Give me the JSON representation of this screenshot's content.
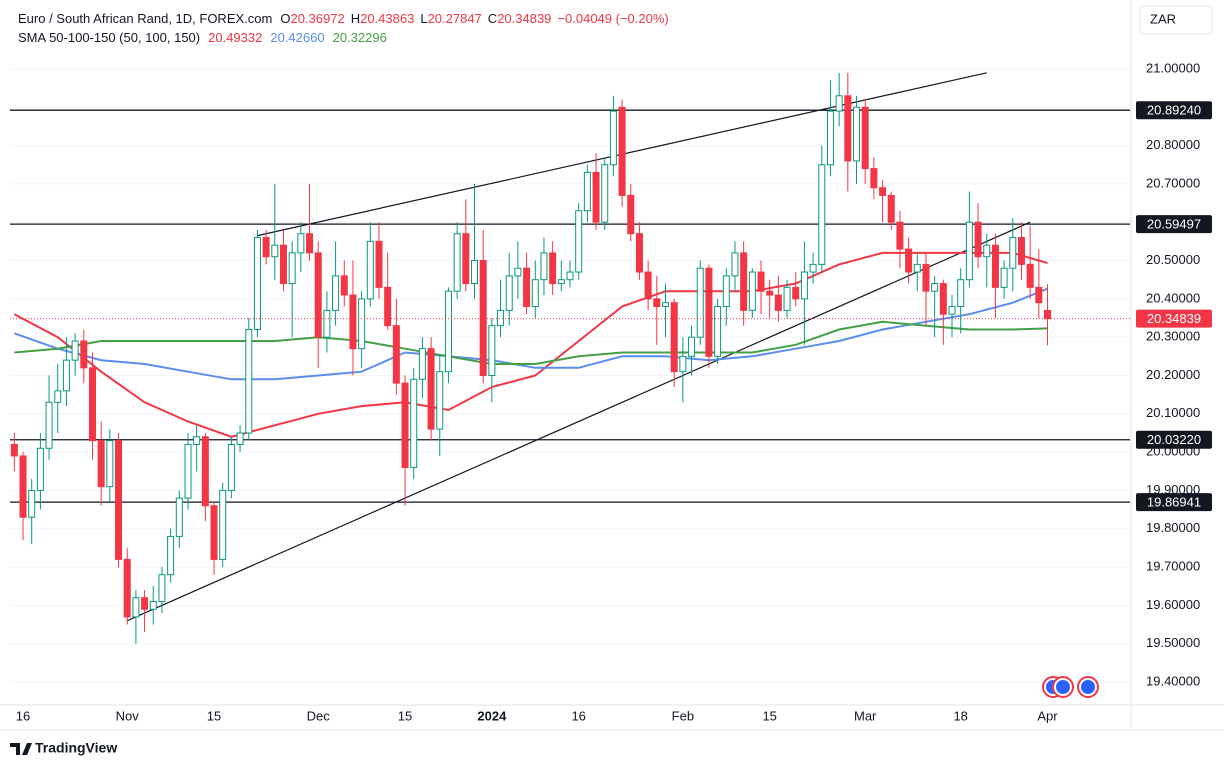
{
  "chart_data": {
    "type": "candlestick",
    "title": "Euro / South African Rand, 1D, FOREX.com",
    "ohlc_text": [
      {
        "key": "O",
        "value": "20.36972"
      },
      {
        "key": "H",
        "value": "20.43863"
      },
      {
        "key": "L",
        "value": "20.27847"
      },
      {
        "key": "C",
        "value": "20.34839"
      }
    ],
    "change_text": "−0.04049 (−0.20%)",
    "indicator": "SMA 50-100-150 (50, 100, 150)",
    "currency": "ZAR",
    "brand": "TradingView",
    "up_color": "#089981",
    "down_color": "#f23645",
    "categories": [
      null,
      "16",
      null,
      null,
      null,
      null,
      null,
      null,
      null,
      null,
      null,
      null,
      null,
      "Nov",
      null,
      null,
      null,
      null,
      null,
      null,
      null,
      null,
      null,
      "15",
      null,
      null,
      null,
      null,
      null,
      null,
      null,
      null,
      null,
      null,
      null,
      "Dec",
      null,
      null,
      null,
      null,
      null,
      null,
      null,
      null,
      null,
      "15",
      null,
      null,
      null,
      null,
      null,
      null,
      null,
      null,
      null,
      "2024",
      null,
      null,
      null,
      null,
      null,
      null,
      null,
      null,
      null,
      "16",
      null,
      null,
      null,
      null,
      null,
      null,
      null,
      null,
      null,
      null,
      null,
      "Feb",
      null,
      null,
      null,
      null,
      null,
      null,
      null,
      null,
      null,
      "15",
      null,
      null,
      null,
      null,
      null,
      null,
      null,
      null,
      null,
      null,
      "Mar",
      null,
      null,
      null,
      null,
      null,
      null,
      null,
      null,
      null,
      null,
      "18",
      null,
      null,
      null,
      null,
      null,
      null,
      null,
      null,
      null,
      "Apr"
    ],
    "open": [
      20.02,
      19.99,
      19.83,
      19.9,
      20.01,
      20.13,
      20.16,
      20.24,
      20.29,
      20.22,
      20.03,
      19.91,
      20.03,
      19.72,
      19.57,
      19.62,
      19.59,
      19.61,
      19.68,
      19.78,
      19.88,
      20.02,
      20.04,
      19.86,
      19.72,
      19.9,
      20.02,
      20.05,
      20.32,
      20.56,
      20.51,
      20.54,
      20.44,
      20.52,
      20.57,
      20.52,
      20.3,
      20.37,
      20.46,
      20.41,
      20.27,
      20.4,
      20.55,
      20.43,
      20.33,
      20.18,
      19.96,
      20.19,
      20.27,
      20.06,
      20.21,
      20.42,
      20.57,
      20.44,
      20.5,
      20.2,
      20.33,
      20.37,
      20.46,
      20.48,
      20.38,
      20.45,
      20.52,
      20.44,
      20.45,
      20.47,
      20.63,
      20.73,
      20.6,
      20.75,
      20.9,
      20.67,
      20.57,
      20.47,
      20.4,
      20.38,
      20.39,
      20.21,
      20.25,
      20.3,
      20.48,
      20.25,
      20.38,
      20.46,
      20.52,
      20.37,
      20.47,
      20.42,
      20.41,
      20.37,
      20.43,
      20.4,
      20.47,
      20.49,
      20.75,
      20.89,
      20.93,
      20.76,
      20.9,
      20.74,
      20.69,
      20.67,
      20.6,
      20.53,
      20.47,
      20.49,
      20.42,
      20.44,
      20.36,
      20.38,
      20.45,
      20.6,
      20.51,
      20.54,
      20.43,
      20.48,
      20.56,
      20.49,
      20.43,
      20.36972
    ],
    "high": [
      20.05,
      20.0,
      19.93,
      20.05,
      20.2,
      20.23,
      20.3,
      20.31,
      20.32,
      20.26,
      20.08,
      20.06,
      20.05,
      19.75,
      19.64,
      19.64,
      19.65,
      19.7,
      19.8,
      19.9,
      20.05,
      20.07,
      20.05,
      19.87,
      19.92,
      20.04,
      20.07,
      20.35,
      20.58,
      20.58,
      20.7,
      20.58,
      20.55,
      20.6,
      20.7,
      20.55,
      20.42,
      20.55,
      20.5,
      20.5,
      20.42,
      20.6,
      20.6,
      20.52,
      20.4,
      20.2,
      20.22,
      20.3,
      20.3,
      20.25,
      20.43,
      20.6,
      20.66,
      20.7,
      20.58,
      20.35,
      20.45,
      20.52,
      20.55,
      20.52,
      20.5,
      20.56,
      20.55,
      20.5,
      20.5,
      20.65,
      20.75,
      20.78,
      20.77,
      20.93,
      20.92,
      20.7,
      20.6,
      20.5,
      20.46,
      20.44,
      20.4,
      20.3,
      20.33,
      20.5,
      20.49,
      20.4,
      20.48,
      20.55,
      20.55,
      20.48,
      20.5,
      20.45,
      20.46,
      20.45,
      20.47,
      20.55,
      20.52,
      20.8,
      20.97,
      20.99,
      20.99,
      20.93,
      20.92,
      20.77,
      20.71,
      20.68,
      20.63,
      20.56,
      20.52,
      20.52,
      20.46,
      20.45,
      20.41,
      20.48,
      20.68,
      20.65,
      20.57,
      20.57,
      20.5,
      20.61,
      20.6,
      20.59,
      20.53,
      20.43863
    ],
    "low": [
      19.95,
      19.77,
      19.76,
      19.85,
      19.98,
      20.05,
      20.12,
      20.2,
      20.18,
      19.98,
      19.86,
      19.87,
      19.7,
      19.55,
      19.5,
      19.53,
      19.55,
      19.58,
      19.66,
      19.75,
      19.85,
      19.95,
      19.82,
      19.68,
      19.7,
      19.88,
      20.0,
      20.03,
      20.3,
      20.49,
      20.45,
      20.42,
      20.3,
      20.47,
      20.5,
      20.22,
      20.26,
      20.33,
      20.38,
      20.2,
      20.22,
      20.38,
      20.4,
      20.32,
      20.15,
      19.86,
      19.93,
      20.14,
      20.03,
      19.99,
      20.18,
      20.4,
      20.42,
      20.4,
      20.18,
      20.13,
      20.3,
      20.33,
      20.4,
      20.36,
      20.35,
      20.41,
      20.41,
      20.42,
      20.43,
      20.45,
      20.6,
      20.58,
      20.58,
      20.72,
      20.64,
      20.55,
      20.45,
      20.37,
      20.28,
      20.3,
      20.17,
      20.13,
      20.2,
      20.28,
      20.22,
      20.23,
      20.33,
      20.42,
      20.33,
      20.35,
      20.36,
      20.35,
      20.34,
      20.35,
      20.38,
      20.28,
      20.44,
      20.47,
      20.72,
      20.85,
      20.68,
      20.7,
      20.7,
      20.66,
      20.6,
      20.58,
      20.48,
      20.44,
      20.42,
      20.33,
      20.3,
      20.28,
      20.3,
      20.31,
      20.43,
      20.48,
      20.43,
      20.35,
      20.4,
      20.42,
      20.45,
      20.4,
      20.35,
      20.27847
    ],
    "close": [
      19.99,
      19.83,
      19.9,
      20.01,
      20.13,
      20.16,
      20.24,
      20.29,
      20.22,
      20.03,
      19.91,
      20.03,
      19.72,
      19.57,
      19.62,
      19.59,
      19.61,
      19.68,
      19.78,
      19.88,
      20.02,
      20.04,
      19.86,
      19.72,
      19.9,
      20.02,
      20.05,
      20.32,
      20.56,
      20.51,
      20.54,
      20.44,
      20.52,
      20.57,
      20.52,
      20.3,
      20.37,
      20.46,
      20.41,
      20.27,
      20.4,
      20.55,
      20.43,
      20.33,
      20.18,
      19.96,
      20.19,
      20.27,
      20.06,
      20.21,
      20.42,
      20.57,
      20.44,
      20.5,
      20.2,
      20.33,
      20.37,
      20.46,
      20.48,
      20.38,
      20.45,
      20.52,
      20.44,
      20.45,
      20.47,
      20.63,
      20.73,
      20.6,
      20.75,
      20.89,
      20.67,
      20.57,
      20.47,
      20.4,
      20.38,
      20.39,
      20.21,
      20.25,
      20.3,
      20.48,
      20.25,
      20.38,
      20.46,
      20.52,
      20.37,
      20.47,
      20.42,
      20.41,
      20.37,
      20.43,
      20.4,
      20.47,
      20.49,
      20.75,
      20.89,
      20.93,
      20.76,
      20.9,
      20.74,
      20.69,
      20.67,
      20.6,
      20.53,
      20.47,
      20.49,
      20.42,
      20.44,
      20.36,
      20.38,
      20.45,
      20.6,
      20.51,
      20.54,
      20.43,
      20.48,
      20.56,
      20.49,
      20.43,
      20.39,
      20.34839
    ],
    "series": [
      {
        "legend_value": "20.49332",
        "color": "#f23645",
        "x": [
          0,
          5,
          10,
          15,
          20,
          25,
          30,
          35,
          40,
          45,
          50,
          55,
          60,
          65,
          70,
          75,
          80,
          85,
          90,
          95,
          100,
          105,
          110,
          115,
          119
        ],
        "values": [
          20.36,
          20.3,
          20.21,
          20.13,
          20.08,
          20.04,
          20.07,
          20.1,
          20.12,
          20.13,
          20.11,
          20.17,
          20.2,
          20.29,
          20.38,
          20.42,
          20.42,
          20.42,
          20.44,
          20.49,
          20.52,
          20.52,
          20.52,
          20.52,
          20.49332
        ]
      },
      {
        "legend_value": "20.42660",
        "color": "#5b8def",
        "x": [
          0,
          5,
          10,
          15,
          20,
          25,
          30,
          35,
          40,
          45,
          50,
          55,
          60,
          65,
          70,
          75,
          80,
          85,
          90,
          95,
          100,
          105,
          110,
          115,
          119
        ],
        "values": [
          20.31,
          20.27,
          20.24,
          20.23,
          20.21,
          20.19,
          20.19,
          20.2,
          20.21,
          20.26,
          20.25,
          20.24,
          20.22,
          20.22,
          20.25,
          20.25,
          20.24,
          20.25,
          20.27,
          20.29,
          20.32,
          20.34,
          20.36,
          20.39,
          20.4266
        ]
      },
      {
        "legend_value": "20.32296",
        "color": "#43a047",
        "x": [
          0,
          5,
          10,
          15,
          20,
          25,
          30,
          35,
          40,
          45,
          50,
          55,
          60,
          65,
          70,
          75,
          80,
          85,
          90,
          95,
          100,
          105,
          110,
          115,
          119
        ],
        "values": [
          20.26,
          20.27,
          20.29,
          20.29,
          20.29,
          20.29,
          20.29,
          20.3,
          20.29,
          20.27,
          20.25,
          20.23,
          20.23,
          20.25,
          20.26,
          20.26,
          20.26,
          20.26,
          20.28,
          20.32,
          20.34,
          20.33,
          20.32,
          20.32,
          20.32296
        ]
      }
    ],
    "hlines": [
      {
        "value": 20.8924,
        "label": "20.89240"
      },
      20.59497,
      {
        "value": 20.0322,
        "label": "20.03220"
      },
      19.86941
    ],
    "last_price": 20.34839,
    "trendlines": [
      {
        "x": [
          13,
          117
        ],
        "y": [
          19.56,
          20.6
        ]
      },
      {
        "x": [
          28,
          112
        ],
        "y": [
          20.565,
          20.99
        ]
      }
    ],
    "xlim": [
      -0.5,
      128.5
    ],
    "ylim": [
      19.34,
      21.18
    ],
    "yticks": [
      {
        "value": 19.4,
        "label": "19.40000"
      },
      {
        "value": 19.5,
        "label": "19.50000"
      },
      {
        "value": 19.6,
        "label": "19.60000"
      },
      {
        "value": 19.7,
        "label": "19.70000"
      },
      {
        "value": 19.8,
        "label": "19.80000"
      },
      {
        "value": 19.9,
        "label": "19.90000"
      },
      {
        "value": 20.0,
        "label": "20.00000"
      },
      {
        "value": 20.1,
        "label": "20.10000"
      },
      {
        "value": 20.2,
        "label": "20.20000"
      },
      {
        "value": 20.3,
        "label": "20.30000"
      },
      {
        "value": 20.4,
        "label": "20.40000"
      },
      {
        "value": 20.5,
        "label": "20.50000"
      },
      {
        "value": 20.6,
        "label": "20.60000"
      },
      {
        "value": 20.7,
        "label": "20.70000"
      },
      {
        "value": 20.8,
        "label": "20.80000"
      },
      {
        "value": 20.9,
        "label": "20.90000"
      },
      {
        "value": 21.0,
        "label": "21.00000"
      }
    ]
  }
}
